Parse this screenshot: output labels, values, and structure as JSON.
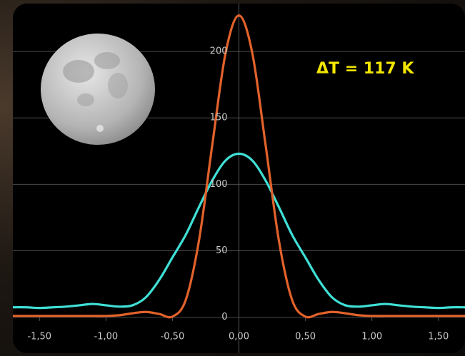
{
  "chart_data": {
    "type": "line",
    "annotation": "ΔT = 117 K",
    "x": [
      -1.7,
      -1.6,
      -1.5,
      -1.4,
      -1.3,
      -1.2,
      -1.1,
      -1.0,
      -0.9,
      -0.8,
      -0.7,
      -0.6,
      -0.5,
      -0.4,
      -0.3,
      -0.2,
      -0.1,
      0,
      0.1,
      0.2,
      0.3,
      0.4,
      0.5,
      0.6,
      0.7,
      0.8,
      0.9,
      1.0,
      1.1,
      1.2,
      1.3,
      1.4,
      1.5,
      1.6,
      1.7
    ],
    "series": [
      {
        "color": "#3fe0d6",
        "values": [
          7.5,
          7.5,
          7,
          7.5,
          8,
          9,
          10,
          9,
          8,
          9,
          15,
          28,
          45,
          62,
          83,
          103,
          118,
          123,
          118,
          103,
          83,
          62,
          45,
          28,
          15,
          9,
          8,
          9,
          10,
          9,
          8,
          7.5,
          7,
          7.5,
          7.5
        ]
      },
      {
        "color": "#e2622b",
        "values": [
          1,
          1,
          1,
          1,
          1,
          1,
          1,
          1,
          1.5,
          3,
          4,
          2.5,
          0.5,
          13,
          58,
          130,
          199,
          227,
          199,
          130,
          58,
          13,
          0.5,
          2.5,
          4,
          3,
          1.5,
          1,
          1,
          1,
          1,
          1,
          1,
          1,
          1
        ]
      }
    ],
    "xlim": [
      -1.7,
      1.7
    ],
    "ylim": [
      -27,
      236
    ],
    "xticks": [
      {
        "value": -1.5,
        "label": "-1,50"
      },
      {
        "value": -1.0,
        "label": "-1,00"
      },
      {
        "value": -0.5,
        "label": "-0,50"
      },
      {
        "value": 0,
        "label": "0,00"
      },
      {
        "value": 0.5,
        "label": "0,50"
      },
      {
        "value": 1.0,
        "label": "1,00"
      },
      {
        "value": 1.5,
        "label": "1,50"
      }
    ],
    "yticks": [
      0,
      50,
      100,
      150,
      200
    ],
    "grid": true
  }
}
